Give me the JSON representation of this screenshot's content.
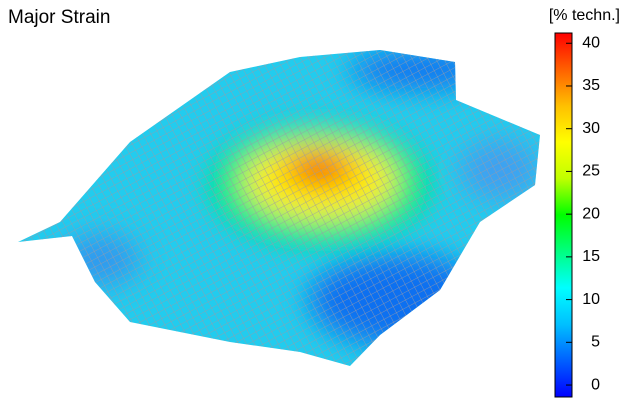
{
  "title": "Major Strain",
  "colorbar": {
    "label": "[% techn.]",
    "lim": [
      -1.4,
      41.2
    ],
    "ticks": [
      0,
      5,
      10,
      15,
      20,
      25,
      30,
      35,
      40
    ],
    "colors": [
      "#0000ff",
      "#0060ff",
      "#00c0ff",
      "#00ffff",
      "#00ff80",
      "#00ff00",
      "#c0ff00",
      "#ffff00",
      "#ffc000",
      "#ff6000",
      "#ff0000"
    ]
  }
}
